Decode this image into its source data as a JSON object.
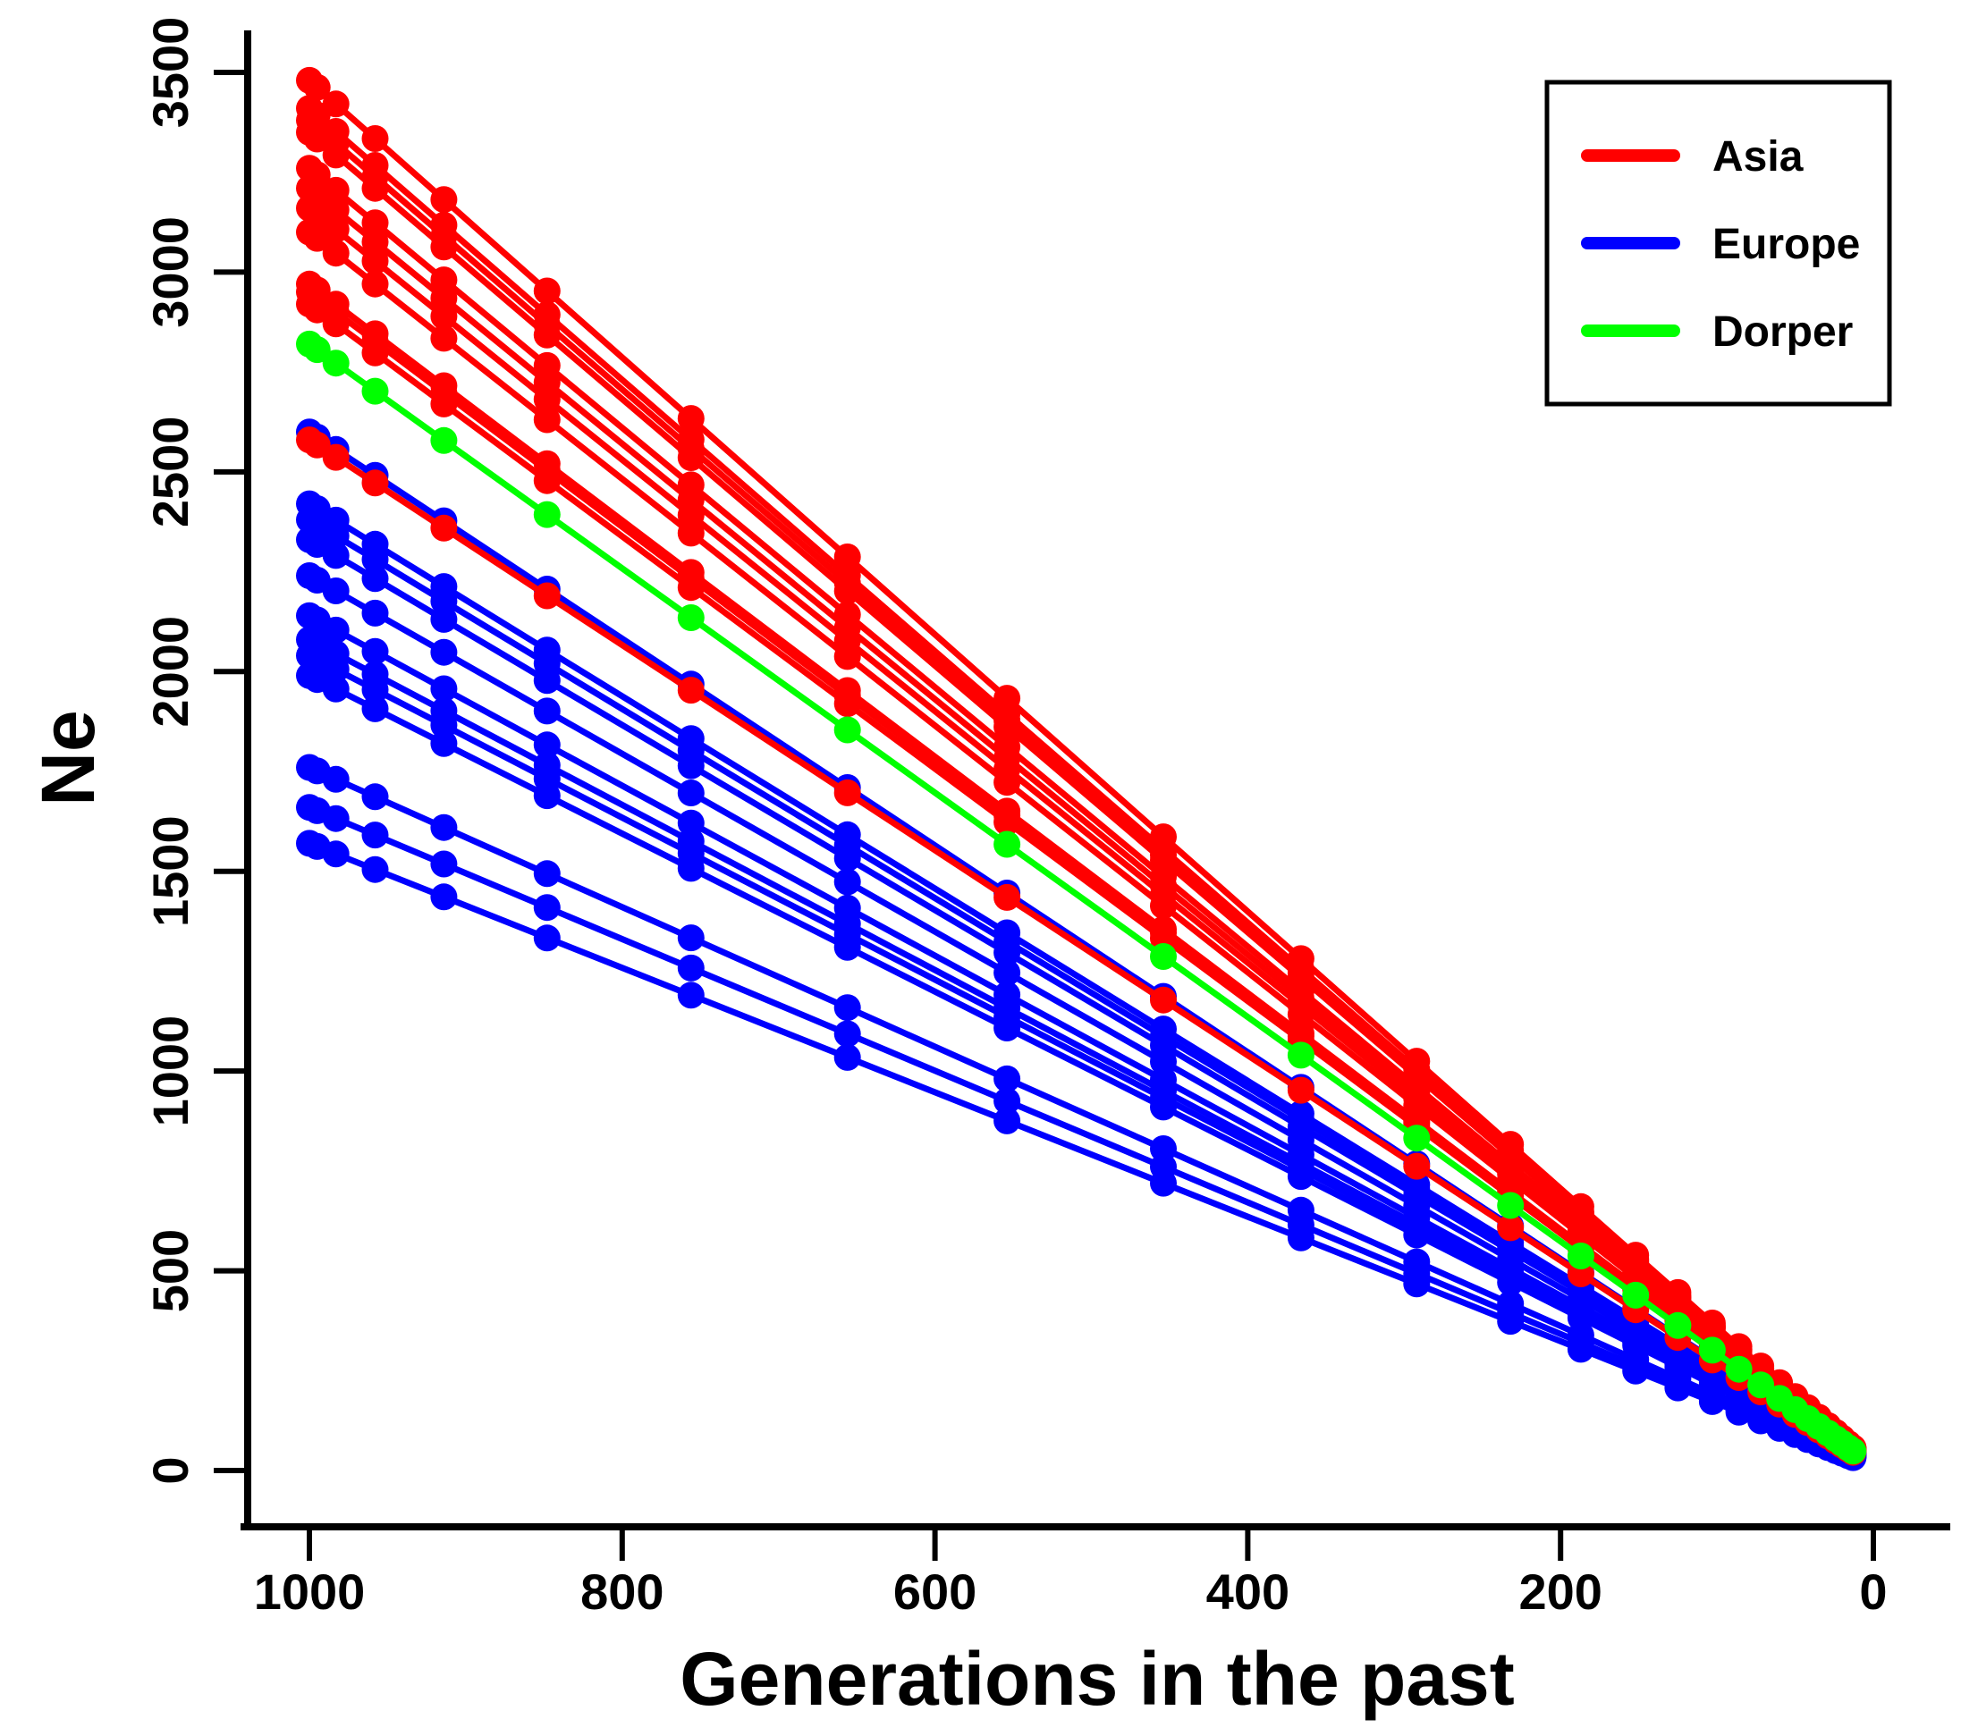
{
  "chart_data": {
    "type": "line",
    "title": "",
    "xlabel": "Generations in the past",
    "ylabel": "Ne",
    "xlim": [
      1040,
      -10
    ],
    "ylim": [
      -150,
      3640
    ],
    "x_ticks": [
      "1000",
      "800",
      "600",
      "400",
      "200",
      "0"
    ],
    "y_ticks": [
      "0",
      "500",
      "1000",
      "1500",
      "2000",
      "2500",
      "3000",
      "3500"
    ],
    "x_points": [
      1000,
      995,
      983,
      958,
      914,
      848,
      756,
      656,
      554,
      454,
      366,
      292,
      232,
      187,
      152,
      125,
      103,
      86,
      72,
      60,
      50,
      42,
      35,
      29,
      24,
      20,
      16,
      13
    ],
    "legend": [
      {
        "name": "Asia",
        "color": "#ff0000"
      },
      {
        "name": "Europe",
        "color": "#0000ff"
      },
      {
        "name": "Dorper",
        "color": "#00ff00"
      }
    ],
    "series": [
      {
        "group": "Asia",
        "start_ne": 3480
      },
      {
        "group": "Asia",
        "start_ne": 3410
      },
      {
        "group": "Asia",
        "start_ne": 3380
      },
      {
        "group": "Asia",
        "start_ne": 3350
      },
      {
        "group": "Asia",
        "start_ne": 3260
      },
      {
        "group": "Asia",
        "start_ne": 3210
      },
      {
        "group": "Asia",
        "start_ne": 3160
      },
      {
        "group": "Asia",
        "start_ne": 3100
      },
      {
        "group": "Asia",
        "start_ne": 2970
      },
      {
        "group": "Asia",
        "start_ne": 2950
      },
      {
        "group": "Asia",
        "start_ne": 2920
      },
      {
        "group": "Asia",
        "start_ne": 2580
      },
      {
        "group": "Dorper",
        "start_ne": 2820
      },
      {
        "group": "Europe",
        "start_ne": 2600
      },
      {
        "group": "Europe",
        "start_ne": 2420
      },
      {
        "group": "Europe",
        "start_ne": 2380
      },
      {
        "group": "Europe",
        "start_ne": 2330
      },
      {
        "group": "Europe",
        "start_ne": 2240
      },
      {
        "group": "Europe",
        "start_ne": 2140
      },
      {
        "group": "Europe",
        "start_ne": 2080
      },
      {
        "group": "Europe",
        "start_ne": 2040
      },
      {
        "group": "Europe",
        "start_ne": 1990
      },
      {
        "group": "Europe",
        "start_ne": 1760
      },
      {
        "group": "Europe",
        "start_ne": 1660
      },
      {
        "group": "Europe",
        "start_ne": 1570
      }
    ]
  }
}
